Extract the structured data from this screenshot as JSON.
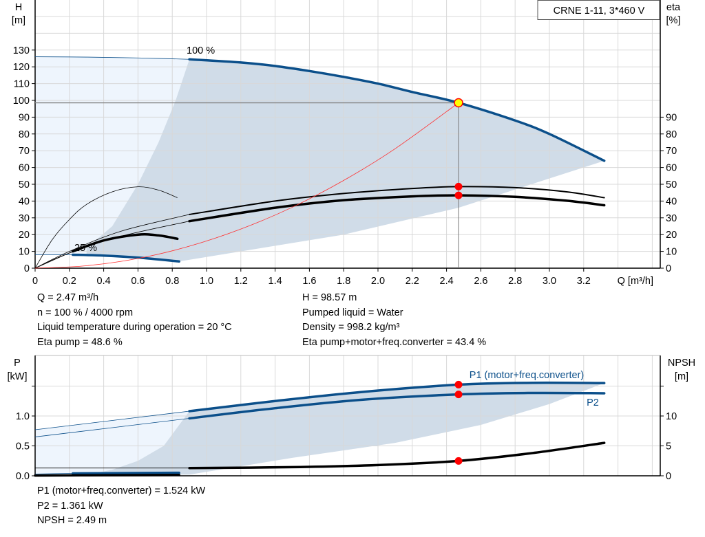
{
  "chart_data": [
    {
      "type": "line",
      "title": "CRNE 1-11, 3*460 V",
      "xlabel": "Q [m³/h]",
      "ylabel": "H\n[m]",
      "y2label": "eta\n[%]",
      "xlim": [
        0,
        3.6
      ],
      "ylim": [
        0,
        150
      ],
      "y2lim": [
        0,
        150
      ],
      "grid": true,
      "xticks": [
        "0",
        "0.2",
        "0.4",
        "0.6",
        "0.8",
        "1.0",
        "1.2",
        "1.4",
        "1.6",
        "1.8",
        "2.0",
        "2.2",
        "2.4",
        "2.6",
        "2.8",
        "3.0",
        "3.2"
      ],
      "yticks": [
        "0",
        "10",
        "20",
        "30",
        "40",
        "50",
        "60",
        "70",
        "80",
        "90",
        "100",
        "110",
        "120",
        "130"
      ],
      "y2ticks": [
        "0",
        "10",
        "20",
        "30",
        "40",
        "50",
        "60",
        "70",
        "80",
        "90"
      ],
      "annotations": [
        "100 %",
        "25 %"
      ],
      "series": [
        {
          "key": "h100",
          "axis": "H",
          "color": "#0b4f8a",
          "thin_until": 0.9,
          "x": [
            0,
            0.3,
            0.6,
            0.9,
            1.2,
            1.4,
            1.6,
            1.8,
            2.0,
            2.2,
            2.47,
            2.8,
            3.0,
            3.32
          ],
          "y": [
            126,
            125.8,
            125.3,
            124.5,
            122.6,
            120.5,
            117.5,
            114,
            110,
            105,
            98.57,
            88,
            80,
            64
          ]
        },
        {
          "key": "h25",
          "axis": "H",
          "color": "#0b4f8a",
          "thin_until": 0.22,
          "x": [
            0,
            0.22,
            0.4,
            0.6,
            0.84
          ],
          "y": [
            8,
            8,
            7.5,
            6.3,
            4
          ]
        },
        {
          "key": "eta_pump100",
          "axis": "eta",
          "color": "#000000",
          "thin_until": 0.9,
          "x": [
            0,
            0.2,
            0.5,
            0.9,
            1.4,
            1.8,
            2.2,
            2.47,
            2.8,
            3.1,
            3.32
          ],
          "y": [
            0,
            10,
            22,
            32,
            40,
            44.5,
            47.5,
            48.6,
            48,
            45.5,
            42
          ]
        },
        {
          "key": "eta_total100",
          "axis": "eta",
          "color": "#000000",
          "thin_until": 0.9,
          "bold": true,
          "x": [
            0,
            0.2,
            0.5,
            0.9,
            1.4,
            1.8,
            2.2,
            2.47,
            2.8,
            3.1,
            3.32
          ],
          "y": [
            0,
            9,
            19,
            28,
            36,
            40.5,
            42.8,
            43.4,
            42.5,
            40.2,
            37.5
          ]
        },
        {
          "key": "eta_pump25",
          "axis": "eta",
          "color": "#000000",
          "thin": true,
          "x": [
            0,
            0.1,
            0.2,
            0.3,
            0.45,
            0.6,
            0.72,
            0.83
          ],
          "y": [
            0,
            17,
            29,
            38,
            45.5,
            48.5,
            46.5,
            42
          ]
        },
        {
          "key": "eta_total25",
          "axis": "eta",
          "color": "#000000",
          "thin_until": 0.22,
          "bold": true,
          "x": [
            0,
            0.22,
            0.4,
            0.6,
            0.72,
            0.83
          ],
          "y": [
            0,
            10,
            16.5,
            20,
            19.5,
            17.5
          ]
        },
        {
          "key": "system",
          "axis": "H",
          "color": "#ff3030",
          "thin": true,
          "x": [
            0,
            0.3,
            0.6,
            0.9,
            1.2,
            1.5,
            1.8,
            2.1,
            2.47
          ],
          "y": [
            0,
            1.45,
            5.8,
            13.1,
            23.3,
            36.3,
            52.3,
            71.2,
            98.57
          ]
        }
      ],
      "operating_point": {
        "Q": 2.47,
        "H": 98.57,
        "eta_pump": 48.6,
        "eta_total": 43.4
      }
    },
    {
      "type": "line",
      "ylabel": "P\n[kW]",
      "y2label": "NPSH\n[m]",
      "xlim": [
        0,
        3.6
      ],
      "ylim": [
        0,
        2.0
      ],
      "y2lim": [
        0,
        20
      ],
      "grid": true,
      "yticks": [
        "0.0",
        "0.5",
        "1.0"
      ],
      "y2ticks": [
        "0",
        "5",
        "10"
      ],
      "series": [
        {
          "key": "p1",
          "name": "P1 (motor+freq.converter)",
          "axis": "P",
          "color": "#0b4f8a",
          "thin_until": 0.9,
          "x": [
            0,
            0.9,
            1.4,
            1.9,
            2.47,
            2.9,
            3.32
          ],
          "y": [
            0.77,
            1.08,
            1.25,
            1.4,
            1.524,
            1.555,
            1.55
          ]
        },
        {
          "key": "p2",
          "name": "P2",
          "axis": "P",
          "color": "#0b4f8a",
          "thin_until": 0.9,
          "x": [
            0,
            0.9,
            1.4,
            1.9,
            2.47,
            2.9,
            3.32
          ],
          "y": [
            0.65,
            0.96,
            1.13,
            1.27,
            1.361,
            1.385,
            1.38
          ]
        },
        {
          "key": "p25",
          "axis": "P",
          "color": "#0b4f8a",
          "thin_until": 0.22,
          "x": [
            0,
            0.22,
            0.5,
            0.84
          ],
          "y": [
            0.03,
            0.04,
            0.045,
            0.05
          ]
        },
        {
          "key": "npsh",
          "axis": "NPSH",
          "color": "#000000",
          "thin_until": 0.9,
          "bold": true,
          "x": [
            0,
            0.9,
            1.5,
            2.0,
            2.47,
            2.9,
            3.32
          ],
          "y": [
            1.3,
            1.3,
            1.45,
            1.8,
            2.49,
            3.8,
            5.5
          ]
        },
        {
          "key": "npsh25",
          "axis": "NPSH",
          "color": "#000000",
          "thin_until": 0.0,
          "bold": true,
          "x": [
            0,
            0.4,
            0.84
          ],
          "y": [
            0.05,
            0.1,
            0.15
          ]
        }
      ],
      "operating_point": {
        "Q": 2.47,
        "P1": 1.524,
        "P2": 1.361,
        "NPSH": 2.49
      }
    }
  ],
  "info_top": {
    "left": [
      "Q = 2.47 m³/h",
      "n = 100 % / 4000 rpm",
      "Liquid temperature during operation = 20 °C",
      "Eta pump = 48.6 %"
    ],
    "right": [
      "H = 98.57 m",
      "Pumped liquid = Water",
      "Density = 998.2 kg/m³",
      "Eta pump+motor+freq.converter = 43.4 %"
    ]
  },
  "info_bottom": [
    "P1 (motor+freq.converter) = 1.524 kW",
    "P2 = 1.361 kW",
    "NPSH = 2.49 m"
  ],
  "colors": {
    "curve_blue": "#0b4f8a",
    "area_dark": "#d0dce8",
    "area_light": "#eef5fd",
    "marker": "#ff0000",
    "op_marker": "#ffff00",
    "grid": "#d8d8d8"
  }
}
